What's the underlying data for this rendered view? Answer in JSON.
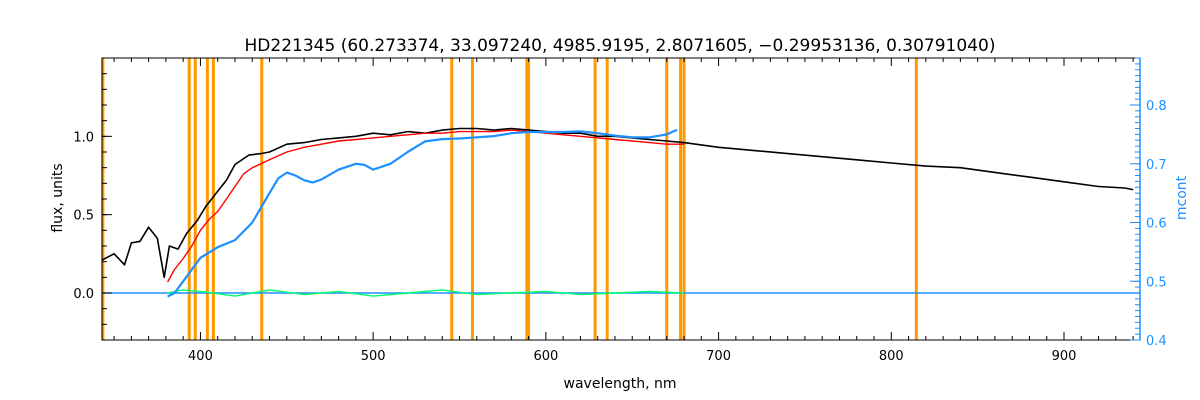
{
  "chart_data": {
    "type": "line",
    "title": "HD221345   (60.273374, 33.097240, 4985.9195, 2.8071605, −0.29953136, 0.30791040)",
    "xlabel": "wavelength, nm",
    "ylabel": "flux, units",
    "y2label": "mcont",
    "xlim": [
      343,
      944
    ],
    "ylim": [
      -0.3,
      1.5
    ],
    "y2lim": [
      0.4,
      0.88
    ],
    "xticks": [
      "400",
      "500",
      "600",
      "700",
      "800",
      "900"
    ],
    "yticks": [
      "0.0",
      "0.5",
      "1.0"
    ],
    "y2ticks": [
      "0.4",
      "0.5",
      "0.6",
      "0.7",
      "0.8"
    ],
    "grid": false,
    "colors": {
      "observed": "#000000",
      "model": "#ff0000",
      "residual": "#00ff66",
      "continuum": "#1e90ff",
      "masks": "#ff9900",
      "right_axis": "#1e90ff"
    },
    "masked_wavelengths": [
      343.5,
      393.5,
      397,
      404,
      407.5,
      435.5,
      545.5,
      557.5,
      589,
      590,
      628.5,
      635.5,
      670,
      678,
      680,
      814.5
    ],
    "series": [
      {
        "key": "observed",
        "x": [
          343,
          350,
          356,
          360,
          365,
          370,
          375,
          379,
          382,
          387,
          392,
          398,
          403,
          410,
          415,
          420,
          428,
          435,
          440,
          450,
          460,
          470,
          480,
          490,
          500,
          510,
          520,
          530,
          540,
          550,
          560,
          570,
          580,
          590,
          600,
          610,
          620,
          630,
          640,
          650,
          660,
          670,
          680,
          700,
          720,
          740,
          760,
          780,
          800,
          820,
          840,
          860,
          880,
          900,
          920,
          935,
          940
        ],
        "y": [
          0.21,
          0.25,
          0.18,
          0.32,
          0.33,
          0.42,
          0.35,
          0.1,
          0.3,
          0.28,
          0.38,
          0.46,
          0.55,
          0.65,
          0.72,
          0.82,
          0.88,
          0.89,
          0.9,
          0.95,
          0.96,
          0.98,
          0.99,
          1.0,
          1.02,
          1.01,
          1.03,
          1.02,
          1.04,
          1.05,
          1.05,
          1.04,
          1.05,
          1.04,
          1.03,
          1.02,
          1.02,
          1.0,
          1.0,
          0.99,
          0.98,
          0.97,
          0.96,
          0.93,
          0.91,
          0.89,
          0.87,
          0.85,
          0.83,
          0.81,
          0.8,
          0.77,
          0.74,
          0.71,
          0.68,
          0.67,
          0.66
        ]
      },
      {
        "key": "model",
        "x": [
          381,
          385,
          390,
          395,
          400,
          405,
          410,
          415,
          420,
          425,
          430,
          440,
          450,
          460,
          470,
          480,
          490,
          500,
          510,
          520,
          530,
          540,
          550,
          560,
          570,
          580,
          590,
          600,
          610,
          620,
          630,
          640,
          650,
          660,
          670,
          680
        ],
        "y": [
          0.07,
          0.15,
          0.22,
          0.3,
          0.4,
          0.47,
          0.52,
          0.6,
          0.68,
          0.76,
          0.8,
          0.85,
          0.9,
          0.93,
          0.95,
          0.97,
          0.98,
          0.99,
          1.0,
          1.01,
          1.02,
          1.02,
          1.03,
          1.03,
          1.03,
          1.04,
          1.03,
          1.02,
          1.01,
          1.0,
          0.99,
          0.98,
          0.97,
          0.96,
          0.95,
          0.95
        ]
      },
      {
        "key": "continuum",
        "axis": "right",
        "x": [
          381,
          385,
          390,
          395,
          400,
          410,
          420,
          430,
          440,
          445,
          450,
          455,
          460,
          465,
          470,
          480,
          490,
          495,
          500,
          510,
          520,
          530,
          540,
          550,
          560,
          570,
          580,
          590,
          600,
          610,
          620,
          630,
          640,
          650,
          660,
          670,
          676
        ],
        "y": [
          0.474,
          0.48,
          0.5,
          0.52,
          0.54,
          0.558,
          0.57,
          0.6,
          0.65,
          0.675,
          0.685,
          0.68,
          0.672,
          0.668,
          0.673,
          0.69,
          0.7,
          0.698,
          0.69,
          0.7,
          0.72,
          0.738,
          0.742,
          0.743,
          0.745,
          0.747,
          0.752,
          0.754,
          0.754,
          0.754,
          0.755,
          0.752,
          0.748,
          0.745,
          0.745,
          0.75,
          0.758
        ]
      },
      {
        "key": "residual",
        "x": [
          381,
          390,
          400,
          420,
          440,
          460,
          480,
          500,
          520,
          540,
          560,
          580,
          600,
          620,
          640,
          660,
          680
        ],
        "y": [
          0.0,
          0.02,
          0.01,
          -0.02,
          0.02,
          -0.01,
          0.01,
          -0.02,
          0.0,
          0.02,
          -0.01,
          0.0,
          0.01,
          -0.01,
          0.0,
          0.01,
          0.0
        ]
      },
      {
        "key": "zero",
        "x": [
          343,
          944
        ],
        "y": [
          0.0,
          0.0
        ]
      }
    ]
  }
}
